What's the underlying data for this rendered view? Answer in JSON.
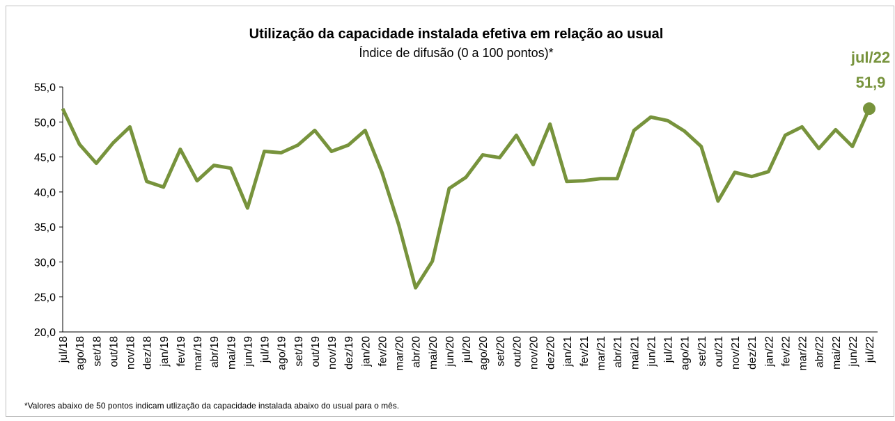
{
  "chart_data": {
    "type": "line",
    "title": "Utilização da capacidade instalada efetiva em relação ao usual",
    "subtitle": "Índice de difusão (0 a 100 pontos)*",
    "footnote": "*Valores abaixo de 50 pontos indicam utlização da capacidade instalada abaixo do usual para o mês.",
    "categories": [
      "jul/18",
      "ago/18",
      "set/18",
      "out/18",
      "nov/18",
      "dez/18",
      "jan/19",
      "fev/19",
      "mar/19",
      "abr/19",
      "mai/19",
      "jun/19",
      "jul/19",
      "ago/19",
      "set/19",
      "out/19",
      "nov/19",
      "dez/19",
      "jan/20",
      "fev/20",
      "mar/20",
      "abr/20",
      "mai/20",
      "jun/20",
      "jul/20",
      "ago/20",
      "set/20",
      "out/20",
      "nov/20",
      "dez/20",
      "jan/21",
      "fev/21",
      "mar/21",
      "abr/21",
      "mai/21",
      "jun/21",
      "jul/21",
      "ago/21",
      "set/21",
      "out/21",
      "nov/21",
      "dez/21",
      "jan/22",
      "fev/22",
      "mar/22",
      "abr/22",
      "mai/22",
      "jun/22",
      "jul/22"
    ],
    "series": [
      {
        "name": "Índice",
        "color": "#77933c",
        "values": [
          51.9,
          46.8,
          44.1,
          47.0,
          49.3,
          41.5,
          40.7,
          46.1,
          41.6,
          43.8,
          43.4,
          37.7,
          45.8,
          45.6,
          46.7,
          48.8,
          45.8,
          46.7,
          48.8,
          42.8,
          35.3,
          26.3,
          30.1,
          40.5,
          42.1,
          45.3,
          44.9,
          48.1,
          43.9,
          49.7,
          41.5,
          41.6,
          41.9,
          41.9,
          48.8,
          50.7,
          50.2,
          48.7,
          46.5,
          38.7,
          42.8,
          42.2,
          42.9,
          48.1,
          49.3,
          46.2,
          48.9,
          46.5,
          51.9
        ],
        "value_labels": [
          null,
          null,
          null,
          null,
          null,
          null,
          null,
          null,
          null,
          null,
          null,
          null,
          null,
          null,
          null,
          null,
          null,
          null,
          null,
          null,
          null,
          null,
          null,
          null,
          null,
          null,
          null,
          null,
          null,
          null,
          null,
          null,
          null,
          null,
          null,
          null,
          null,
          null,
          null,
          null,
          null,
          null,
          null,
          null,
          null,
          null,
          null,
          null,
          "51,9"
        ]
      }
    ],
    "annotation": "jul/22",
    "ylim": [
      20,
      55
    ],
    "yticks": [
      {
        "value": 20,
        "label": "20,0"
      },
      {
        "value": 25,
        "label": "25,0"
      },
      {
        "value": 30,
        "label": "30,0"
      },
      {
        "value": 35,
        "label": "35,0"
      },
      {
        "value": 40,
        "label": "40,0"
      },
      {
        "value": 45,
        "label": "45,0"
      },
      {
        "value": 50,
        "label": "50,0"
      },
      {
        "value": 55,
        "label": "55,0"
      }
    ],
    "grid": false
  }
}
